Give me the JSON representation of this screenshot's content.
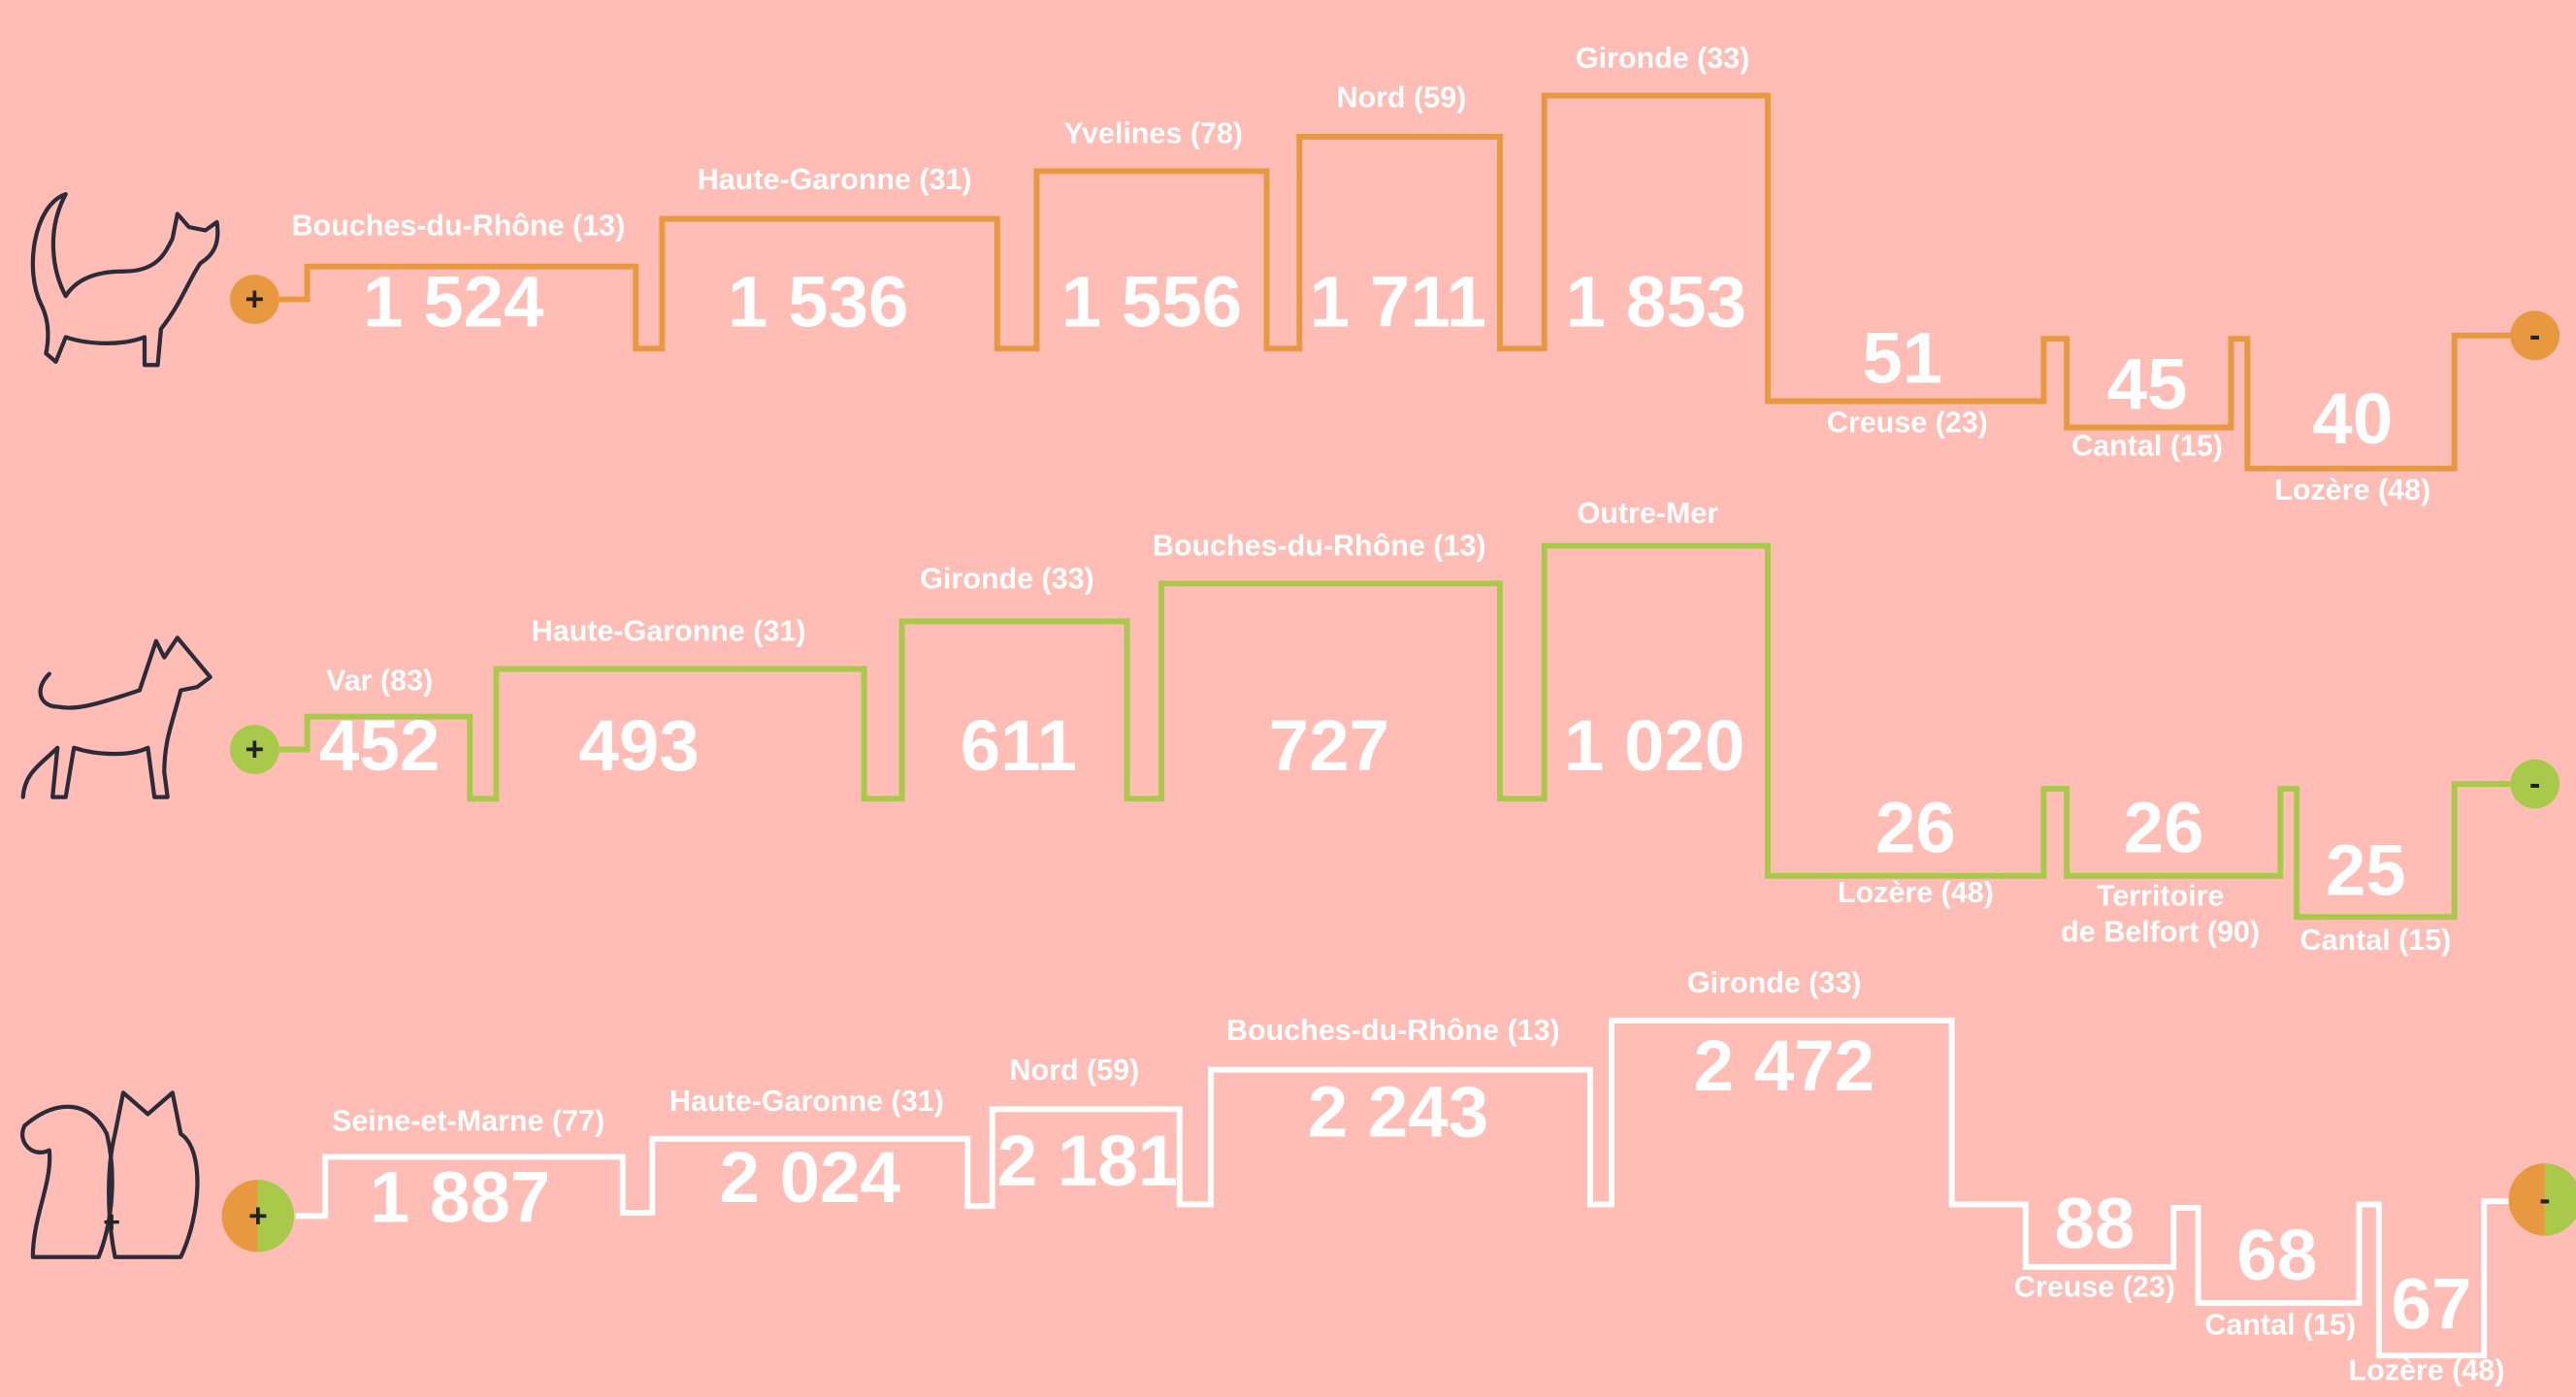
{
  "rows": [
    {
      "color": "#e8993f",
      "plus": "+",
      "minus": "-",
      "items": [
        {
          "label": "Bouches-du-Rhône (13)",
          "value": "1 524"
        },
        {
          "label": "Haute-Garonne (31)",
          "value": "1 536"
        },
        {
          "label": "Yvelines (78)",
          "value": "1 556"
        },
        {
          "label": "Nord (59)",
          "value": "1 711"
        },
        {
          "label": "Gironde (33)",
          "value": "1 853"
        },
        {
          "label": "Creuse (23)",
          "value": "51"
        },
        {
          "label": "Cantal (15)",
          "value": "45"
        },
        {
          "label": "Lozère (48)",
          "value": "40"
        }
      ]
    },
    {
      "color": "#a8c94a",
      "plus": "+",
      "minus": "-",
      "items": [
        {
          "label": "Var (83)",
          "value": "452"
        },
        {
          "label": "Haute-Garonne (31)",
          "value": "493"
        },
        {
          "label": "Gironde (33)",
          "value": "611"
        },
        {
          "label": "Bouches-du-Rhône (13)",
          "value": "727"
        },
        {
          "label": "Outre-Mer",
          "value": "1 020"
        },
        {
          "label": "Lozère (48)",
          "value": "26"
        },
        {
          "label": [
            "Territoire",
            "de Belfort (90)"
          ],
          "value": "26"
        },
        {
          "label": "Cantal (15)",
          "value": "25"
        }
      ]
    },
    {
      "color": "#ffffff",
      "plus": "+",
      "minus": "-",
      "items": [
        {
          "label": "Seine-et-Marne (77)",
          "value": "1 887"
        },
        {
          "label": "Haute-Garonne (31)",
          "value": "2 024"
        },
        {
          "label": "Nord (59)",
          "value": "2 181"
        },
        {
          "label": "Bouches-du-Rhône (13)",
          "value": "2 243"
        },
        {
          "label": "Gironde (33)",
          "value": "2 472"
        },
        {
          "label": "Creuse (23)",
          "value": "88"
        },
        {
          "label": "Cantal (15)",
          "value": "68"
        },
        {
          "label": "Lozère (48)",
          "value": "67"
        }
      ]
    }
  ]
}
